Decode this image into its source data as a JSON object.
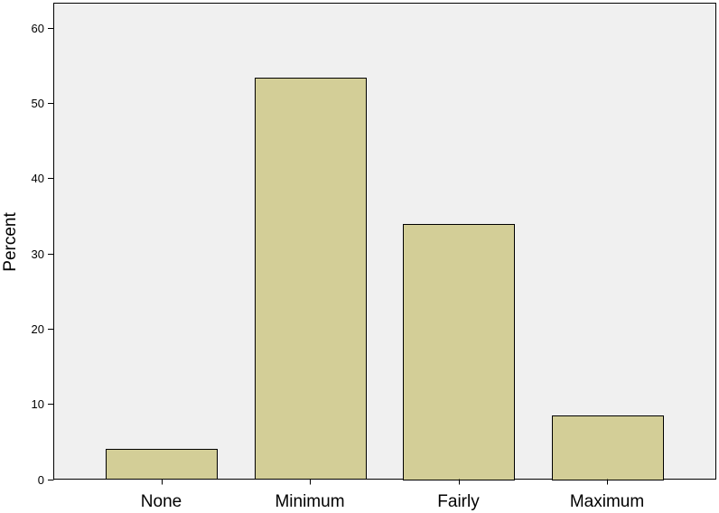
{
  "chart_data": {
    "type": "bar",
    "title": "",
    "xlabel": "",
    "ylabel": "Percent",
    "categories": [
      "None",
      "Minimum",
      "Fairly",
      "Maximum"
    ],
    "values": [
      4.0,
      53.3,
      33.9,
      8.5
    ],
    "ylim": [
      0,
      60
    ],
    "yticks": [
      0,
      10,
      20,
      30,
      40,
      50,
      60
    ],
    "grid": false,
    "legend": "none",
    "colors": {
      "bar_fill": "#d3ce97",
      "bar_stroke": "#000000",
      "plot_background": "#f0f0f0"
    }
  }
}
